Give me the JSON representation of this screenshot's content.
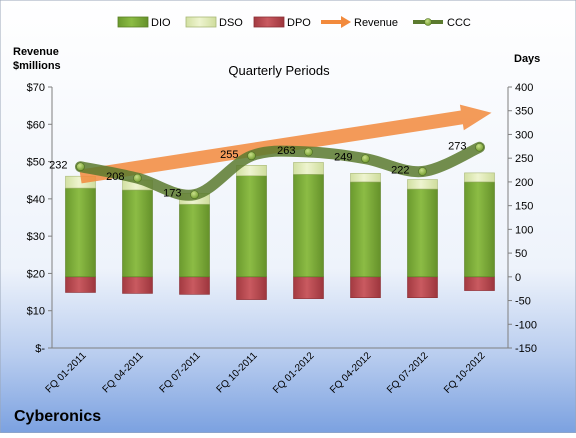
{
  "chart_data": {
    "type": "bar",
    "title": "Quarterly Periods",
    "company": "Cyberonics",
    "left_axis_label_line1": "Revenue",
    "left_axis_label_line2": "$millions",
    "right_axis_label": "Days",
    "categories": [
      "FQ 01-2011",
      "FQ 04-2011",
      "FQ 07-2011",
      "FQ 10-2011",
      "FQ 01-2012",
      "FQ 04-2012",
      "FQ 07-2012",
      "FQ 10-2012"
    ],
    "left_ticks": [
      "$-",
      "$10",
      "$20",
      "$30",
      "$40",
      "$50",
      "$60",
      "$70"
    ],
    "right_ticks": [
      "-150",
      "-100",
      "-50",
      "0",
      "50",
      "100",
      "150",
      "200",
      "250",
      "300",
      "350",
      "400"
    ],
    "right_ylim": [
      -150,
      400
    ],
    "left_ylim": [
      0,
      70
    ],
    "series": [
      {
        "name": "DIO",
        "color": "#7aa83a",
        "values": [
          187,
          183,
          153,
          213,
          216,
          200,
          185,
          200
        ]
      },
      {
        "name": "DSO",
        "color": "#dfeab5",
        "values": [
          25,
          21,
          23,
          22,
          25,
          18,
          20,
          19
        ]
      },
      {
        "name": "DPO",
        "color": "#b8454c",
        "values": [
          -33,
          -35,
          -37,
          -48,
          -46,
          -44,
          -44,
          -29
        ]
      },
      {
        "name": "Revenue",
        "color": "#f28a3c",
        "values": [
          46,
          49,
          52,
          54,
          55,
          57,
          59,
          62
        ]
      },
      {
        "name": "CCC",
        "color": "#5b7a2e",
        "values": [
          232,
          208,
          173,
          255,
          263,
          249,
          222,
          273
        ]
      }
    ],
    "ccc_labels": [
      "232",
      "208",
      "173",
      "255",
      "263",
      "249",
      "222",
      "273"
    ],
    "grid": false,
    "legend": "top"
  }
}
